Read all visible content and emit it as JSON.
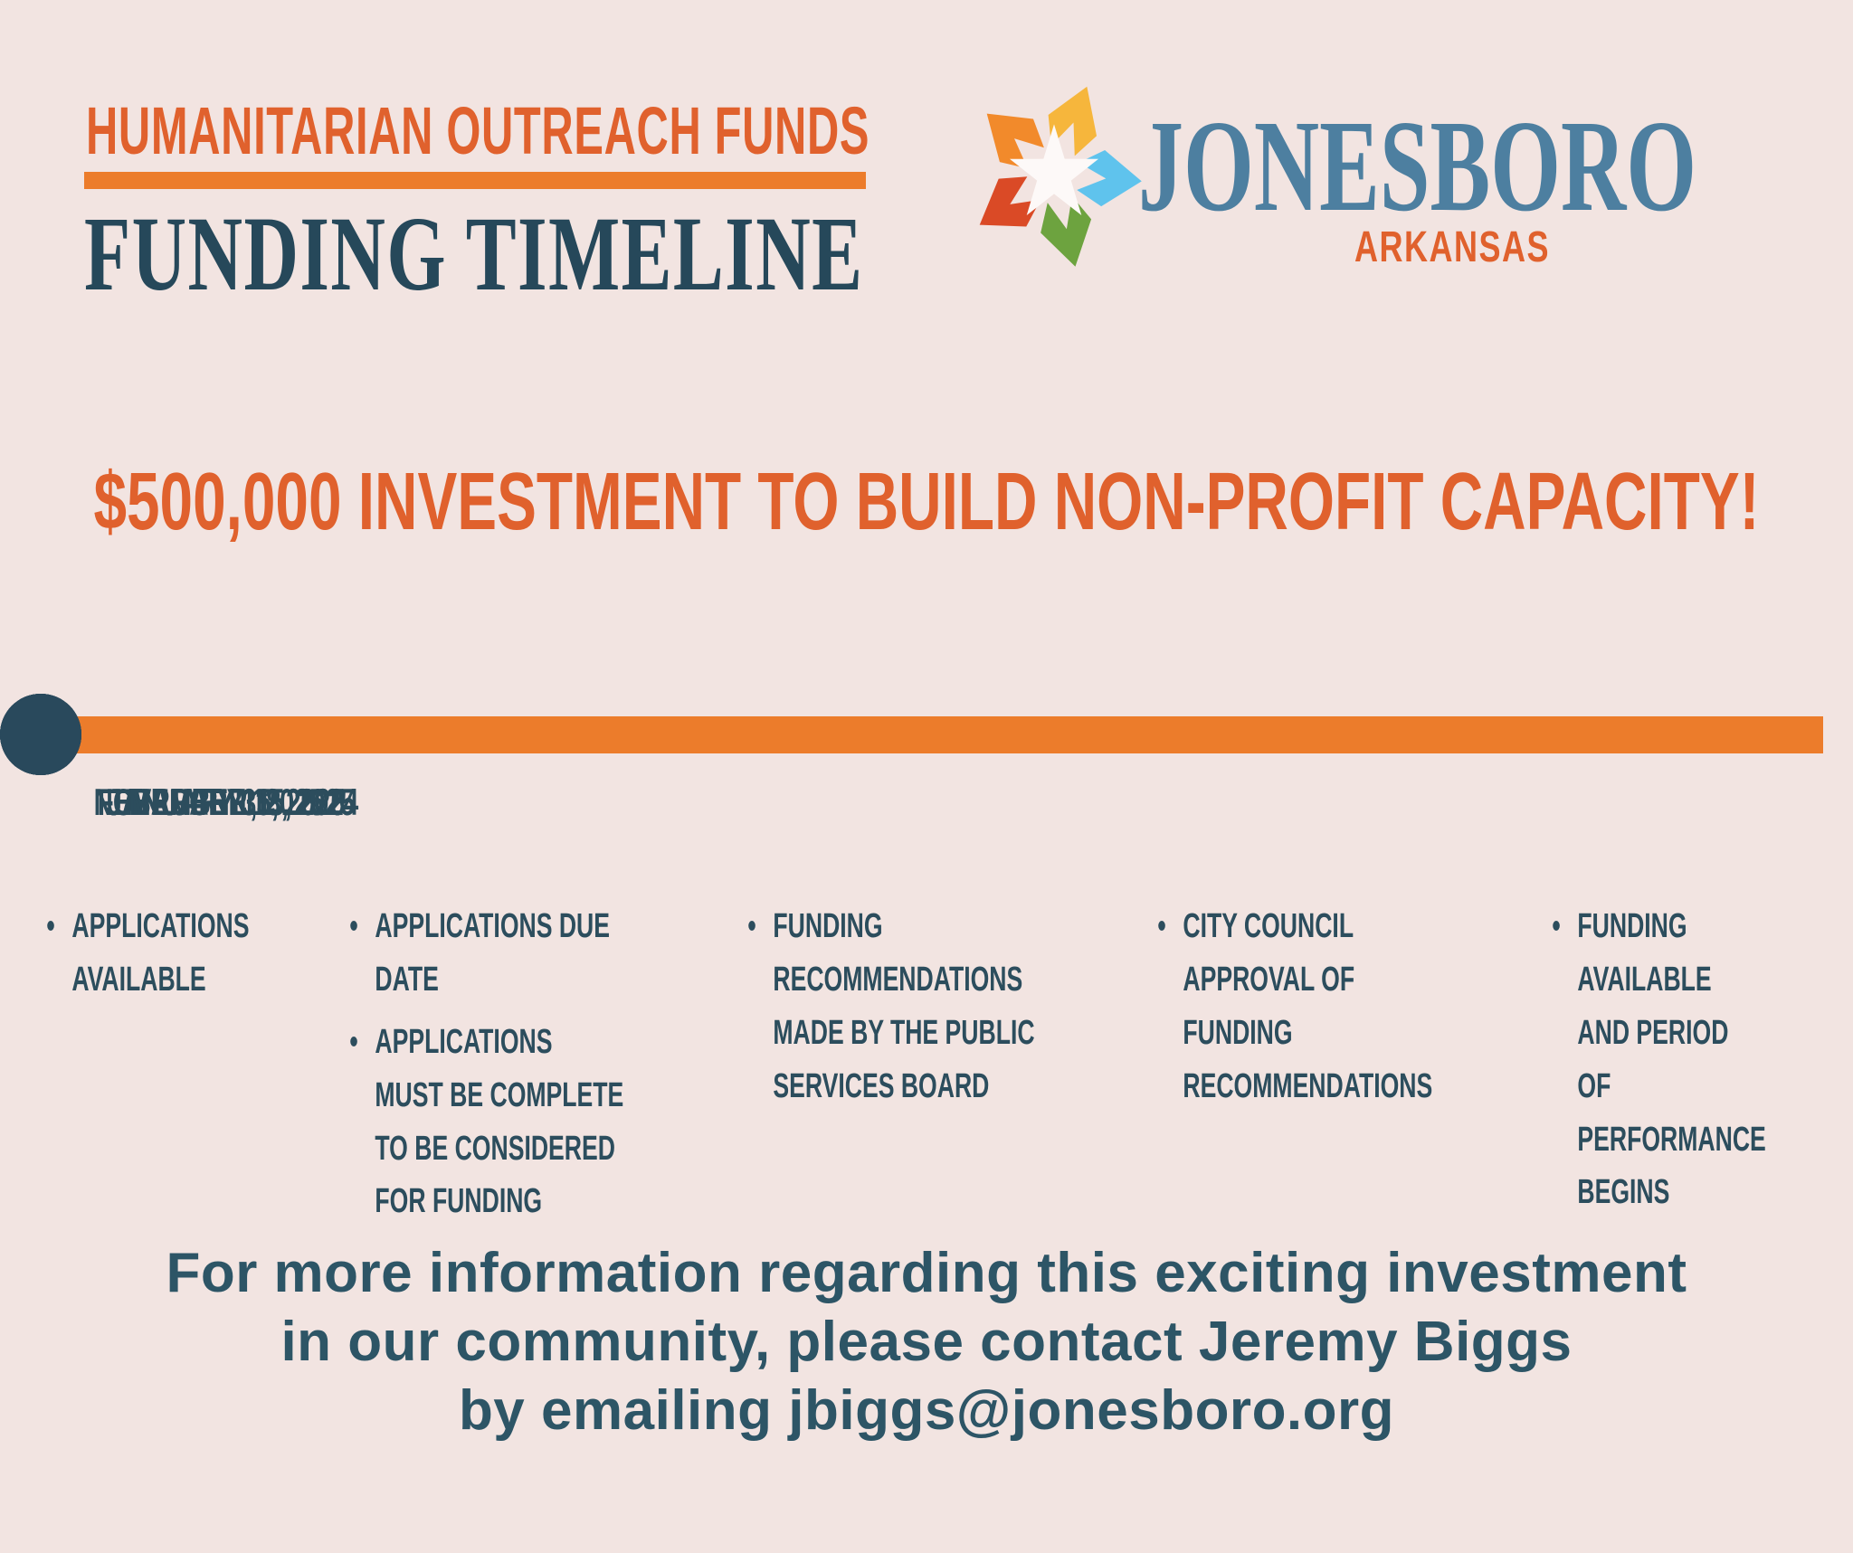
{
  "header": {
    "eyebrow": "HUMANITARIAN OUTREACH FUNDS",
    "title": "FUNDING TIMELINE"
  },
  "logo": {
    "wordmark": "JONESBORO",
    "state": "ARKANSAS"
  },
  "headline": "$500,000 INVESTMENT TO BUILD NON-PROFIT CAPACITY!",
  "timeline": {
    "milestones": [
      {
        "date": "NOVEMBER 15, 2024",
        "items": [
          "APPLICATIONS AVAILABLE"
        ]
      },
      {
        "date": "JANUARY 15, 2025",
        "items": [
          "APPLICATIONS DUE DATE",
          "APPLICATIONS MUST BE COMPLETE TO BE CONSIDERED FOR FUNDING"
        ]
      },
      {
        "date": "JANUARY 31, 2025",
        "items": [
          "FUNDING RECOMMENDATIONS MADE BY THE PUBLIC SERVICES BOARD"
        ]
      },
      {
        "date": "FEBRUARY 18, 2025",
        "items": [
          "CITY COUNCIL APPROVAL OF FUNDING RECOMMENDATIONS"
        ]
      },
      {
        "date": "MARCH 1, 2025",
        "items": [
          "FUNDING AVAILABLE AND PERIOD OF PERFORMANCE BEGINS"
        ]
      }
    ]
  },
  "footer": {
    "lines": [
      "For more information regarding this exciting investment",
      "in our community, please contact Jeremy Biggs",
      "by emailing jbiggs@jonesboro.org"
    ],
    "contact_email": "jbiggs@jonesboro.org"
  },
  "colors": {
    "background": "#f2e4e1",
    "accent_orange_text": "#e0612d",
    "accent_orange_bar": "#ec7c2b",
    "dark_teal_text": "#2c4d5d",
    "title_teal": "#26485a",
    "footer_teal": "#2d5566",
    "timeline_dot": "#29495c",
    "logo_blue": "#4d7fa0",
    "logo_star_orange": "#f28a2b",
    "logo_star_red": "#da4a26",
    "logo_star_yellow": "#f6b63c",
    "logo_star_blue": "#5fc3ed",
    "logo_star_green": "#6da33f"
  }
}
